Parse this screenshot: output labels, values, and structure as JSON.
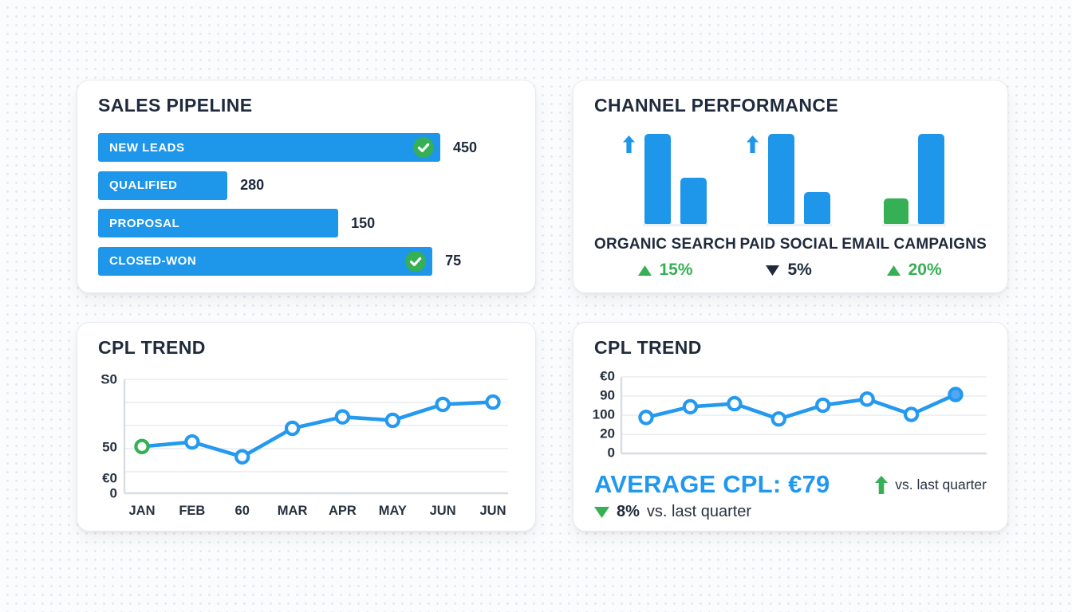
{
  "colors": {
    "blue": "#1E96EA",
    "line_blue": "#2499F0",
    "green": "#35B054",
    "dark": "#1F2A3C",
    "grid": "#ECEFF2",
    "axis": "#D8DDE2",
    "accent_text_blue": "#2098F0"
  },
  "chart_data": [
    {
      "id": "sales_pipeline",
      "type": "bar",
      "orientation": "horizontal",
      "title": "SALES PIPELINE",
      "categories": [
        "NEW LEADS",
        "QUALIFIED",
        "PROPOSAL",
        "CLOSED-WON"
      ],
      "values": [
        450,
        280,
        150,
        75
      ],
      "bar_length_pct": [
        100,
        37.8,
        70.2,
        97.7
      ],
      "checked": [
        true,
        false,
        false,
        true
      ]
    },
    {
      "id": "channel_performance",
      "type": "bar",
      "title": "CHANNEL PERFORMANCE",
      "groups": [
        {
          "label": "ORGANIC SEARCH",
          "bars_pct": [
            100,
            51
          ],
          "bar_colors": [
            "blue",
            "blue"
          ],
          "up_arrow": true,
          "delta": "15%",
          "delta_dir": "up",
          "delta_color": "green"
        },
        {
          "label": "PAID SOCIAL",
          "bars_pct": [
            100,
            35
          ],
          "bar_colors": [
            "blue",
            "blue"
          ],
          "up_arrow": true,
          "delta": "5%",
          "delta_dir": "down",
          "delta_color": "dark"
        },
        {
          "label": "EMAIL CAMPAIGNS",
          "bars_pct": [
            28,
            100
          ],
          "bar_colors": [
            "green",
            "blue"
          ],
          "up_arrow": false,
          "delta": "20%",
          "delta_dir": "up",
          "delta_color": "green"
        }
      ]
    },
    {
      "id": "cpl_trend_left",
      "type": "line",
      "title": "CPL TREND",
      "x_ticks": [
        "JAN",
        "FEB",
        "60",
        "MAR",
        "APR",
        "MAY",
        "JUN",
        "JUN"
      ],
      "y_ticks_top_to_bottom": [
        "S0",
        "50",
        "€0",
        "0"
      ],
      "values_pct_of_height": [
        41,
        45,
        32,
        57,
        67,
        64,
        78,
        80
      ],
      "marker_style": "hollow",
      "first_marker_color": "green",
      "grid": "horizontal"
    },
    {
      "id": "cpl_trend_right",
      "type": "line",
      "title": "CPL TREND",
      "x_ticks": [],
      "y_ticks_top_to_bottom": [
        "€0",
        "90",
        "100",
        "20",
        "0"
      ],
      "values_pct_of_height": [
        47,
        61,
        65,
        45,
        63,
        71,
        51,
        77
      ],
      "marker_style": "hollow",
      "last_marker": "filled",
      "grid": "horizontal",
      "footer": {
        "average": "AVERAGE CPL: €79",
        "up_note": "vs. last quarter",
        "down_delta": "8%",
        "down_note": "vs. last quarter"
      }
    }
  ]
}
